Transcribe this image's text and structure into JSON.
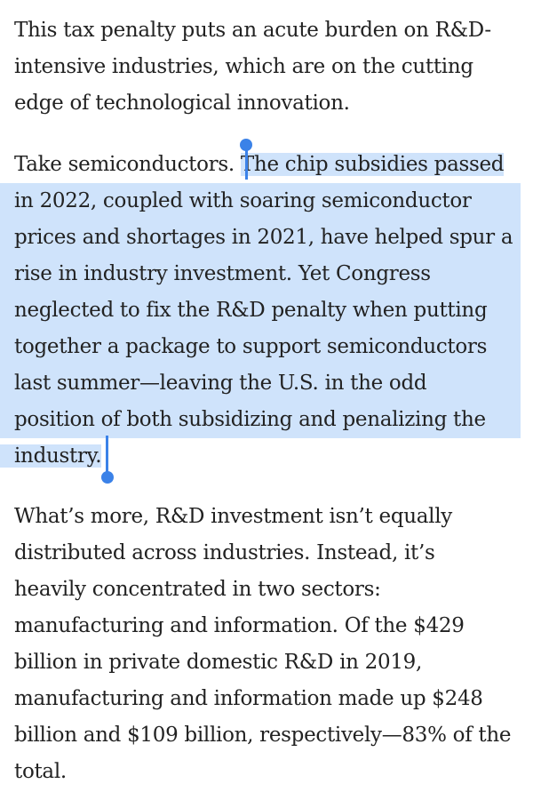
{
  "article": {
    "paragraph_1": [
      "This tax penalty puts an acute burden on R&D-",
      "intensive industries, which are on the cutting",
      "edge of technological innovation."
    ],
    "paragraph_2": {
      "unselected_prefix": "Take semiconductors. ",
      "lines": [
        "The chip subsidies passed",
        "in 2022, coupled with soaring semiconductor",
        "prices and shortages in 2021, have helped spur a",
        "rise in industry investment. Yet Congress",
        "neglected to fix the R&D penalty when putting",
        "together a package to support semiconductors",
        "last summer—leaving the U.S. in the odd",
        "position of both subsidizing and penalizing the",
        "industry."
      ]
    },
    "paragraph_3": [
      "What’s more, R&D investment isn’t equally",
      "distributed across industries. Instead, it’s",
      "heavily concentrated in two sectors:",
      "manufacturing and information. Of the $429",
      "billion in private domestic R&D in 2019,",
      "manufacturing and information made up $248",
      "billion and $109 billion, respectively—83% of the",
      "total."
    ]
  },
  "colors": {
    "text": "#222222",
    "selection_highlight": "#cfe3fb",
    "selection_handle": "#3b82e8"
  }
}
